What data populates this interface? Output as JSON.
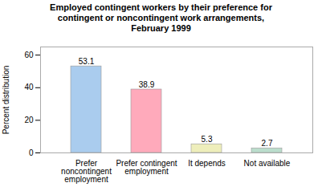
{
  "chart_data": {
    "type": "bar",
    "title": "Employed contingent workers by their preference for\ncontingent or noncontingent work arrangements,\nFebruary 1999",
    "categories": [
      "Prefer\nnoncontingent\nemployment",
      "Prefer contingent\nemployment",
      "It depends",
      "Not available"
    ],
    "values": [
      53.1,
      38.9,
      5.3,
      2.7
    ],
    "colors": [
      "#aaccee",
      "#ffaabb",
      "#eeeebb",
      "#bbddcc"
    ],
    "ylabel": "Percent distribution",
    "ylim": [
      0,
      65
    ],
    "yticks": [
      0,
      20,
      40,
      60
    ],
    "grid": false,
    "data_labels": true
  }
}
